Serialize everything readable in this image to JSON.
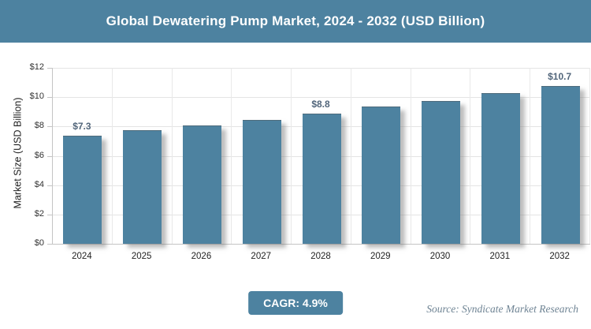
{
  "header": {
    "title": "Global Dewatering Pump Market, 2024 - 2032 (USD Billion)"
  },
  "chart_data": {
    "type": "bar",
    "title": "Global Dewatering Pump Market, 2024 - 2032 (USD Billion)",
    "categories": [
      "2024",
      "2025",
      "2026",
      "2027",
      "2028",
      "2029",
      "2030",
      "2031",
      "2032"
    ],
    "values": [
      7.3,
      7.7,
      8.0,
      8.4,
      8.8,
      9.3,
      9.7,
      10.2,
      10.7
    ],
    "labeled_points": [
      {
        "index": 0,
        "label": "$7.3"
      },
      {
        "index": 4,
        "label": "$8.8"
      },
      {
        "index": 8,
        "label": "$10.7"
      }
    ],
    "xlabel": "",
    "ylabel": "Market Size (USD Billion)",
    "ylim": [
      0,
      12
    ],
    "ytick_step": 2,
    "ytick_labels": [
      "$0",
      "$2",
      "$4",
      "$6",
      "$8",
      "$10",
      "$12"
    ],
    "grid": true,
    "legend_position": "none",
    "bar_color": "#4d82a0"
  },
  "footer": {
    "cagr_label": "CAGR: 4.9%",
    "source_label": "Source: Syndicate Market Research"
  },
  "colors": {
    "accent": "#4d82a0",
    "grid": "#e4e4e4",
    "axis": "#c4c4c4",
    "value_label": "#52667b",
    "source_text": "#6f8494"
  }
}
